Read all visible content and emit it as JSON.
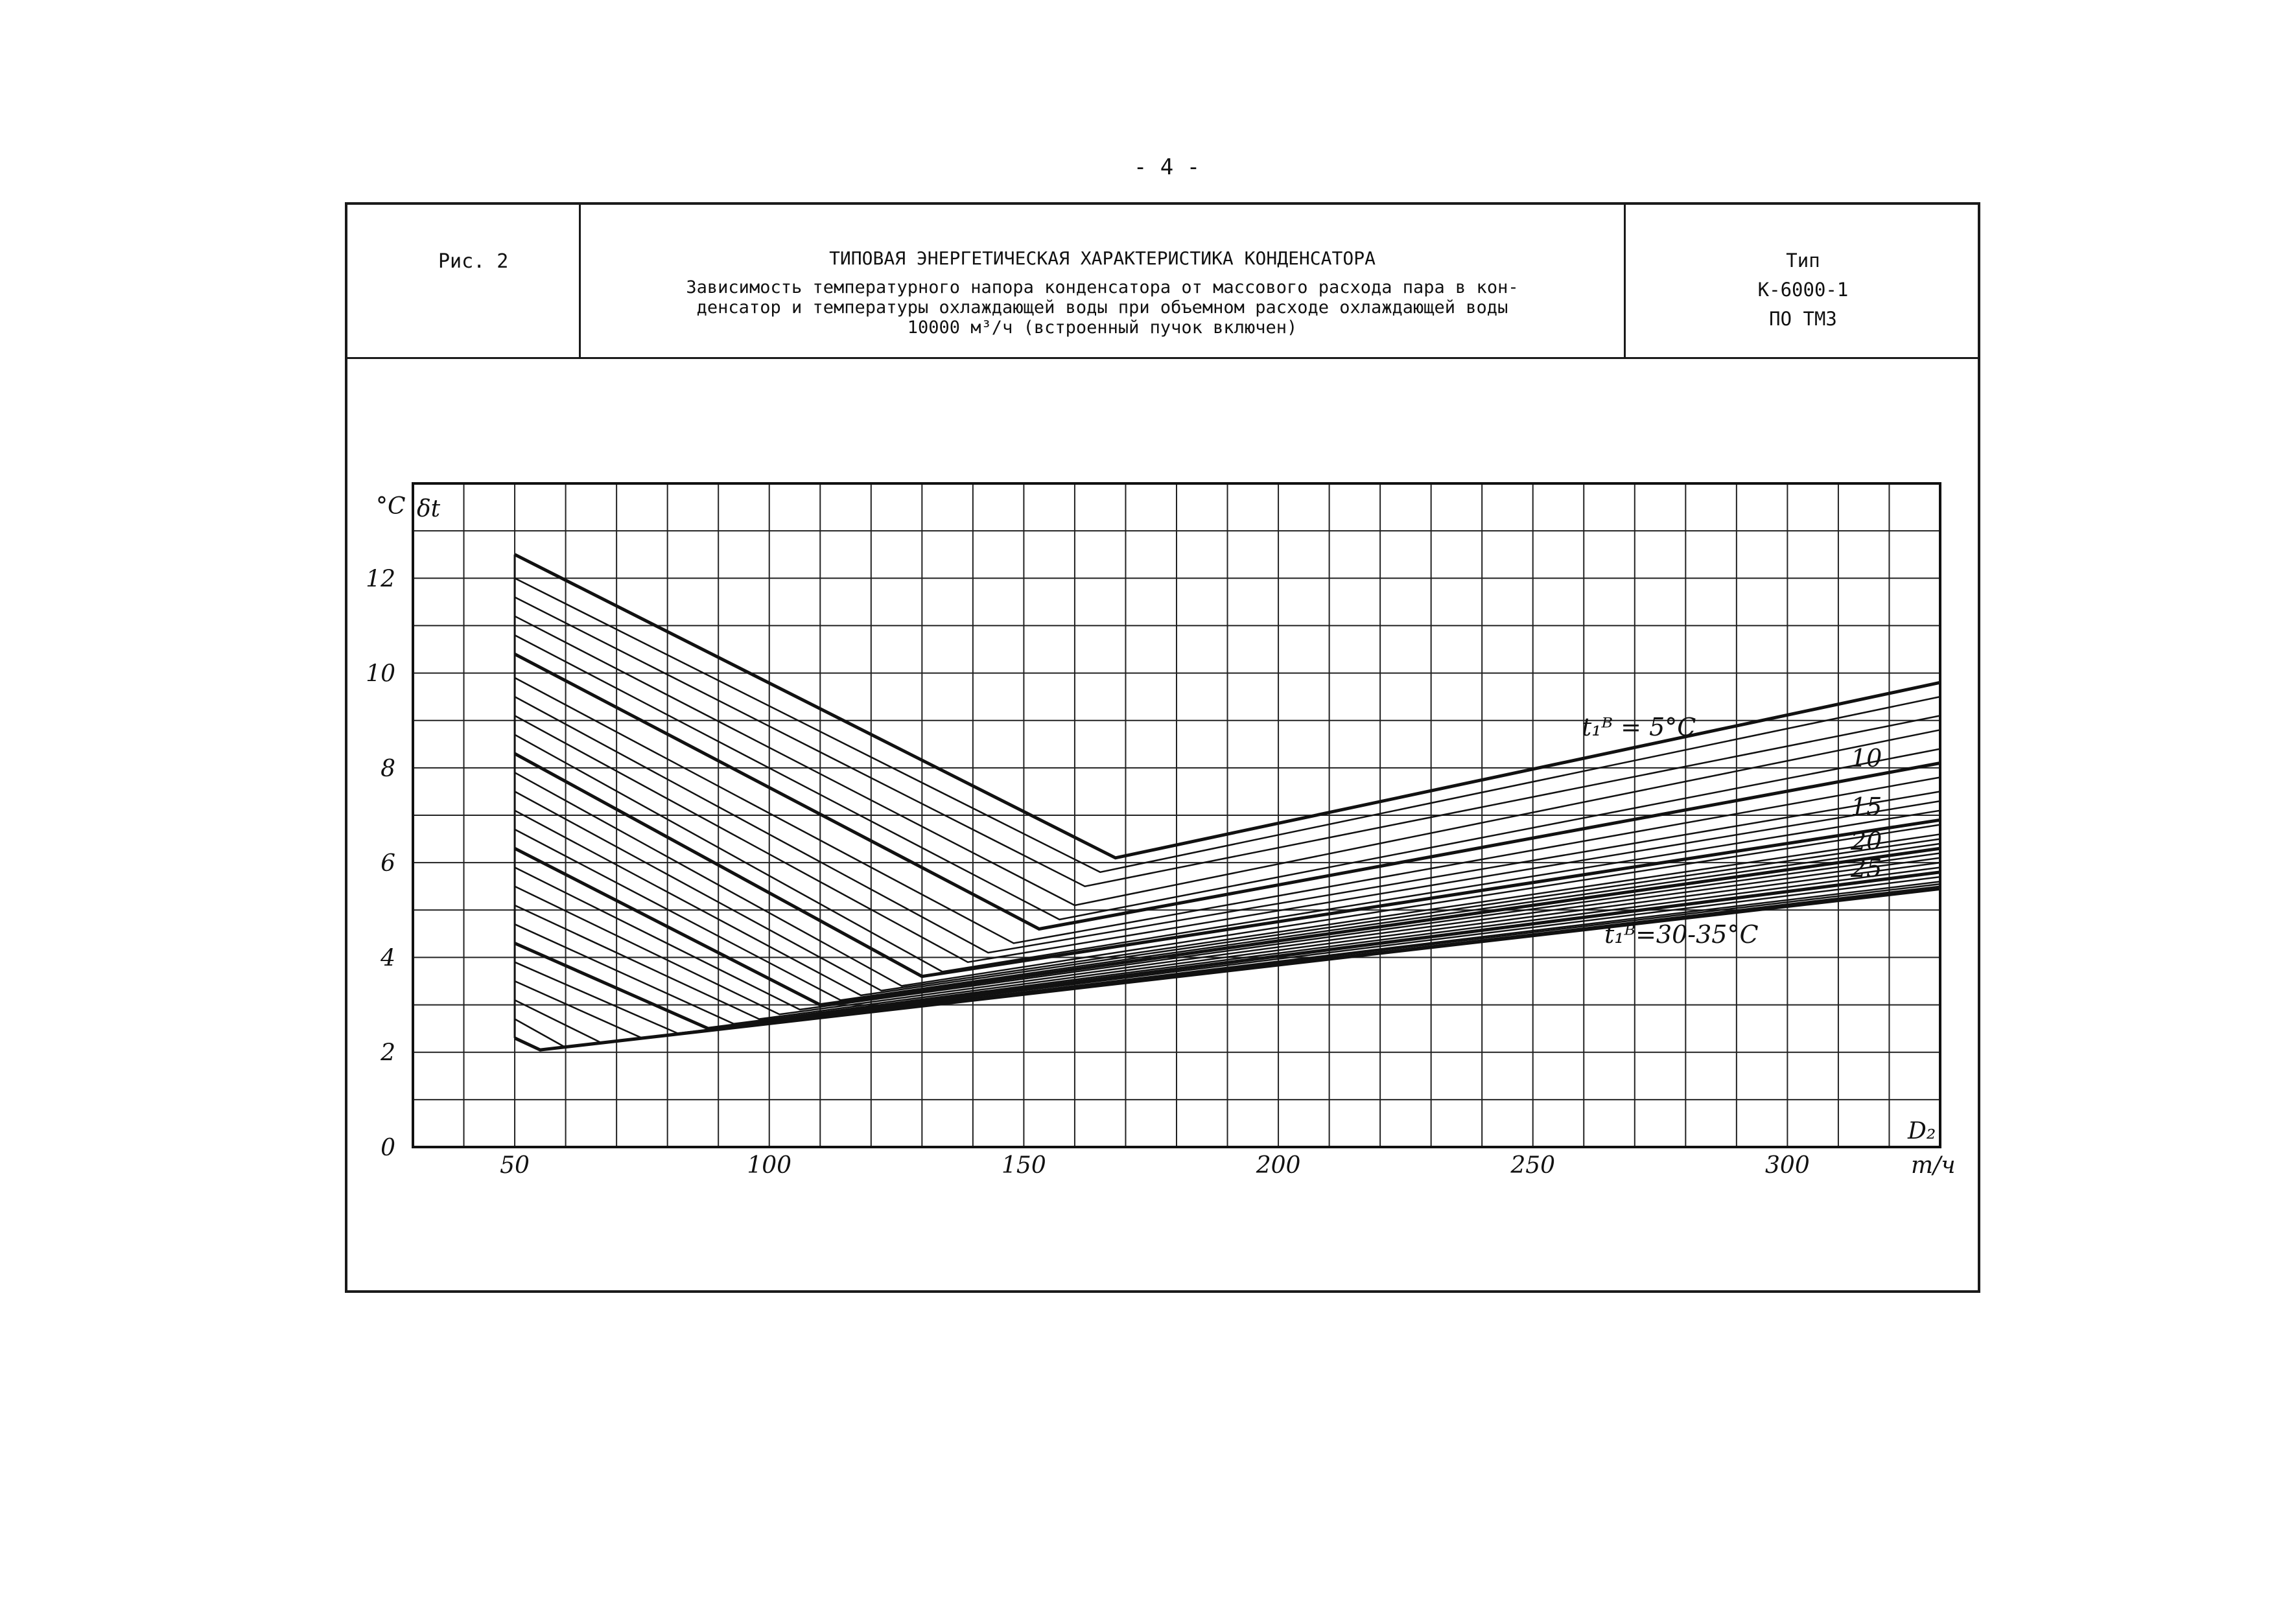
{
  "page": {
    "number": "- 4 -"
  },
  "header": {
    "figure_label": "Рис. 2",
    "title": "ТИПОВАЯ ЭНЕРГЕТИЧЕСКАЯ ХАРАКТЕРИСТИКА КОНДЕНСАТОРА",
    "subtitle_lines": [
      "Зависимость температурного напора конденсатора от массового расхода пара в кон-",
      "денсатор и температуры охлаждающей воды при объемном расходе охлаждающей воды",
      "10000 м³/ч (встроенный пучок включен)"
    ],
    "type_lines": [
      "Тип",
      "К-6000-1",
      "ПО ТМЗ"
    ]
  },
  "chart_data": {
    "type": "line",
    "xlabel": "D₂",
    "xunit": "т/ч",
    "ylabel": "δt",
    "yunit": "°C",
    "xlim": [
      30,
      330
    ],
    "ylim": [
      0,
      14
    ],
    "x_ticks": [
      "50",
      "100",
      "150",
      "200",
      "250",
      "300"
    ],
    "y_ticks": [
      "0",
      "2",
      "4",
      "6",
      "8",
      "10",
      "12"
    ],
    "grid": true,
    "annotations": {
      "top_curve": "t₁ᴮ = 5°C",
      "bottom_curve": "t₁ᴮ=30-35°C",
      "right_labels": [
        "10",
        "15",
        "20",
        "25"
      ]
    },
    "series": [
      {
        "t": 5,
        "points": [
          [
            50,
            12.5
          ],
          [
            168,
            6.1
          ],
          [
            330,
            9.8
          ]
        ]
      },
      {
        "t": 6,
        "points": [
          [
            50,
            12.0
          ],
          [
            165,
            5.8
          ],
          [
            330,
            9.5
          ]
        ]
      },
      {
        "t": 7,
        "points": [
          [
            50,
            11.6
          ],
          [
            162,
            5.5
          ],
          [
            330,
            9.1
          ]
        ]
      },
      {
        "t": 8,
        "points": [
          [
            50,
            11.2
          ],
          [
            160,
            5.1
          ],
          [
            330,
            8.8
          ]
        ]
      },
      {
        "t": 9,
        "points": [
          [
            50,
            10.8
          ],
          [
            157,
            4.8
          ],
          [
            330,
            8.4
          ]
        ]
      },
      {
        "t": 10,
        "points": [
          [
            50,
            10.4
          ],
          [
            153,
            4.6
          ],
          [
            330,
            8.1
          ]
        ]
      },
      {
        "t": 11,
        "points": [
          [
            50,
            9.9
          ],
          [
            148,
            4.3
          ],
          [
            330,
            7.8
          ]
        ]
      },
      {
        "t": 12,
        "points": [
          [
            50,
            9.5
          ],
          [
            143,
            4.1
          ],
          [
            330,
            7.5
          ]
        ]
      },
      {
        "t": 13,
        "points": [
          [
            50,
            9.1
          ],
          [
            139,
            3.9
          ],
          [
            330,
            7.3
          ]
        ]
      },
      {
        "t": 14,
        "points": [
          [
            50,
            8.7
          ],
          [
            134,
            3.7
          ],
          [
            330,
            7.1
          ]
        ]
      },
      {
        "t": 15,
        "points": [
          [
            50,
            8.3
          ],
          [
            130,
            3.6
          ],
          [
            330,
            6.9
          ]
        ]
      },
      {
        "t": 16,
        "points": [
          [
            50,
            7.9
          ],
          [
            126,
            3.4
          ],
          [
            330,
            6.8
          ]
        ]
      },
      {
        "t": 17,
        "points": [
          [
            50,
            7.5
          ],
          [
            122,
            3.3
          ],
          [
            330,
            6.6
          ]
        ]
      },
      {
        "t": 18,
        "points": [
          [
            50,
            7.1
          ],
          [
            118,
            3.2
          ],
          [
            330,
            6.5
          ]
        ]
      },
      {
        "t": 19,
        "points": [
          [
            50,
            6.7
          ],
          [
            114,
            3.1
          ],
          [
            330,
            6.4
          ]
        ]
      },
      {
        "t": 20,
        "points": [
          [
            50,
            6.3
          ],
          [
            110,
            3.0
          ],
          [
            330,
            6.3
          ]
        ]
      },
      {
        "t": 21,
        "points": [
          [
            50,
            5.9
          ],
          [
            106,
            2.9
          ],
          [
            330,
            6.2
          ]
        ]
      },
      {
        "t": 22,
        "points": [
          [
            50,
            5.5
          ],
          [
            102,
            2.8
          ],
          [
            330,
            6.1
          ]
        ]
      },
      {
        "t": 23,
        "points": [
          [
            50,
            5.1
          ],
          [
            98,
            2.7
          ],
          [
            330,
            6.0
          ]
        ]
      },
      {
        "t": 24,
        "points": [
          [
            50,
            4.7
          ],
          [
            93,
            2.6
          ],
          [
            330,
            5.9
          ]
        ]
      },
      {
        "t": 25,
        "points": [
          [
            50,
            4.3
          ],
          [
            88,
            2.5
          ],
          [
            330,
            5.8
          ]
        ]
      },
      {
        "t": 26,
        "points": [
          [
            50,
            3.9
          ],
          [
            82,
            2.4
          ],
          [
            330,
            5.7
          ]
        ]
      },
      {
        "t": 27,
        "points": [
          [
            50,
            3.5
          ],
          [
            75,
            2.3
          ],
          [
            330,
            5.6
          ]
        ]
      },
      {
        "t": 28,
        "points": [
          [
            50,
            3.1
          ],
          [
            67,
            2.2
          ],
          [
            330,
            5.55
          ]
        ]
      },
      {
        "t": 29,
        "points": [
          [
            50,
            2.7
          ],
          [
            60,
            2.1
          ],
          [
            330,
            5.5
          ]
        ]
      },
      {
        "t": 30,
        "points": [
          [
            50,
            2.3
          ],
          [
            55,
            2.05
          ],
          [
            330,
            5.45
          ]
        ]
      }
    ]
  }
}
